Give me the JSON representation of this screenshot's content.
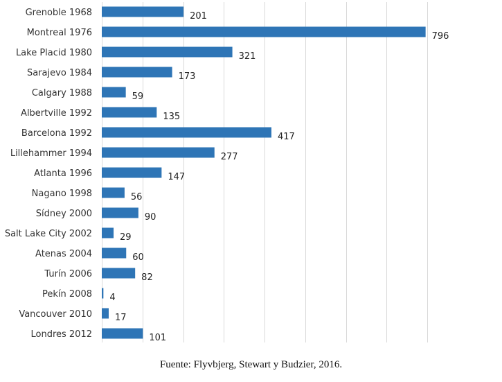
{
  "chart_data": {
    "type": "bar",
    "orientation": "horizontal",
    "categories": [
      "Grenoble 1968",
      "Montreal 1976",
      "Lake Placid 1980",
      "Sarajevo 1984",
      "Calgary 1988",
      "Albertville 1992",
      "Barcelona 1992",
      "Lillehammer 1994",
      "Atlanta 1996",
      "Nagano 1998",
      "Sídney 2000",
      "Salt Lake City 2002",
      "Atenas 2004",
      "Turín 2006",
      "Pekín 2008",
      "Vancouver 2010",
      "Londres 2012"
    ],
    "values": [
      201,
      796,
      321,
      173,
      59,
      135,
      417,
      277,
      147,
      56,
      90,
      29,
      60,
      82,
      4,
      17,
      101
    ],
    "xlim": [
      0,
      900
    ],
    "grid_step": 100,
    "grid": "vertical",
    "title": "",
    "xlabel": "",
    "ylabel": "",
    "bar_color": "#2e75b6",
    "grid_color": "#d9d9d9"
  },
  "source_note": "Fuente: Flyvbjerg, Stewart y Budzier, 2016."
}
